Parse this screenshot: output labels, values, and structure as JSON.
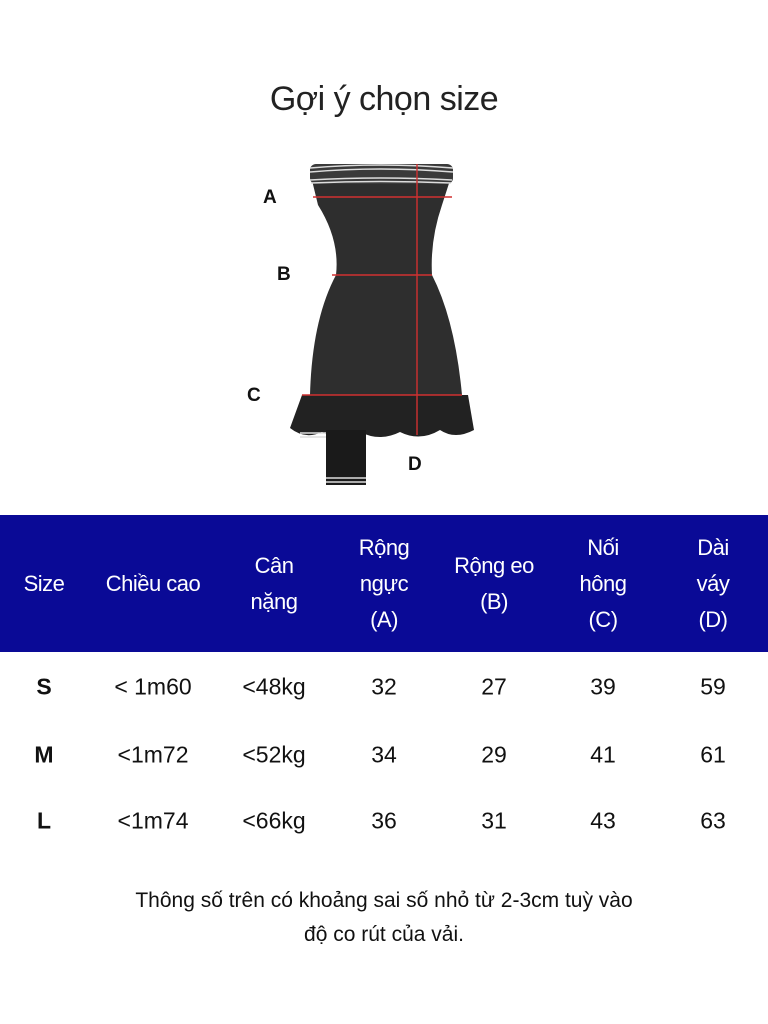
{
  "title": "Gợi ý chọn size",
  "diagram": {
    "labels": [
      "A",
      "B",
      "C",
      "D"
    ],
    "measure_line_color": "#d03030",
    "garment_color": "#2e2e2e"
  },
  "table": {
    "header_bg": "#0a0a96",
    "headers": [
      "Size",
      "Chiều cao",
      "Cân\nnặng",
      "Rộng\nngực\n(A)",
      "Rộng eo\n(B)",
      "Nối\nhông\n(C)",
      "Dài váy\n(D)"
    ],
    "rows": [
      [
        "S",
        "< 1m60",
        "<48kg",
        "32",
        "27",
        "39",
        "59"
      ],
      [
        "M",
        "<1m72",
        "<52kg",
        "34",
        "29",
        "41",
        "61"
      ],
      [
        "L",
        "<1m74",
        "<66kg",
        "36",
        "31",
        "43",
        "63"
      ]
    ]
  },
  "note": "Thông số trên có khoảng sai số nhỏ từ 2-3cm tuỳ vào\nđộ co rút của vải."
}
